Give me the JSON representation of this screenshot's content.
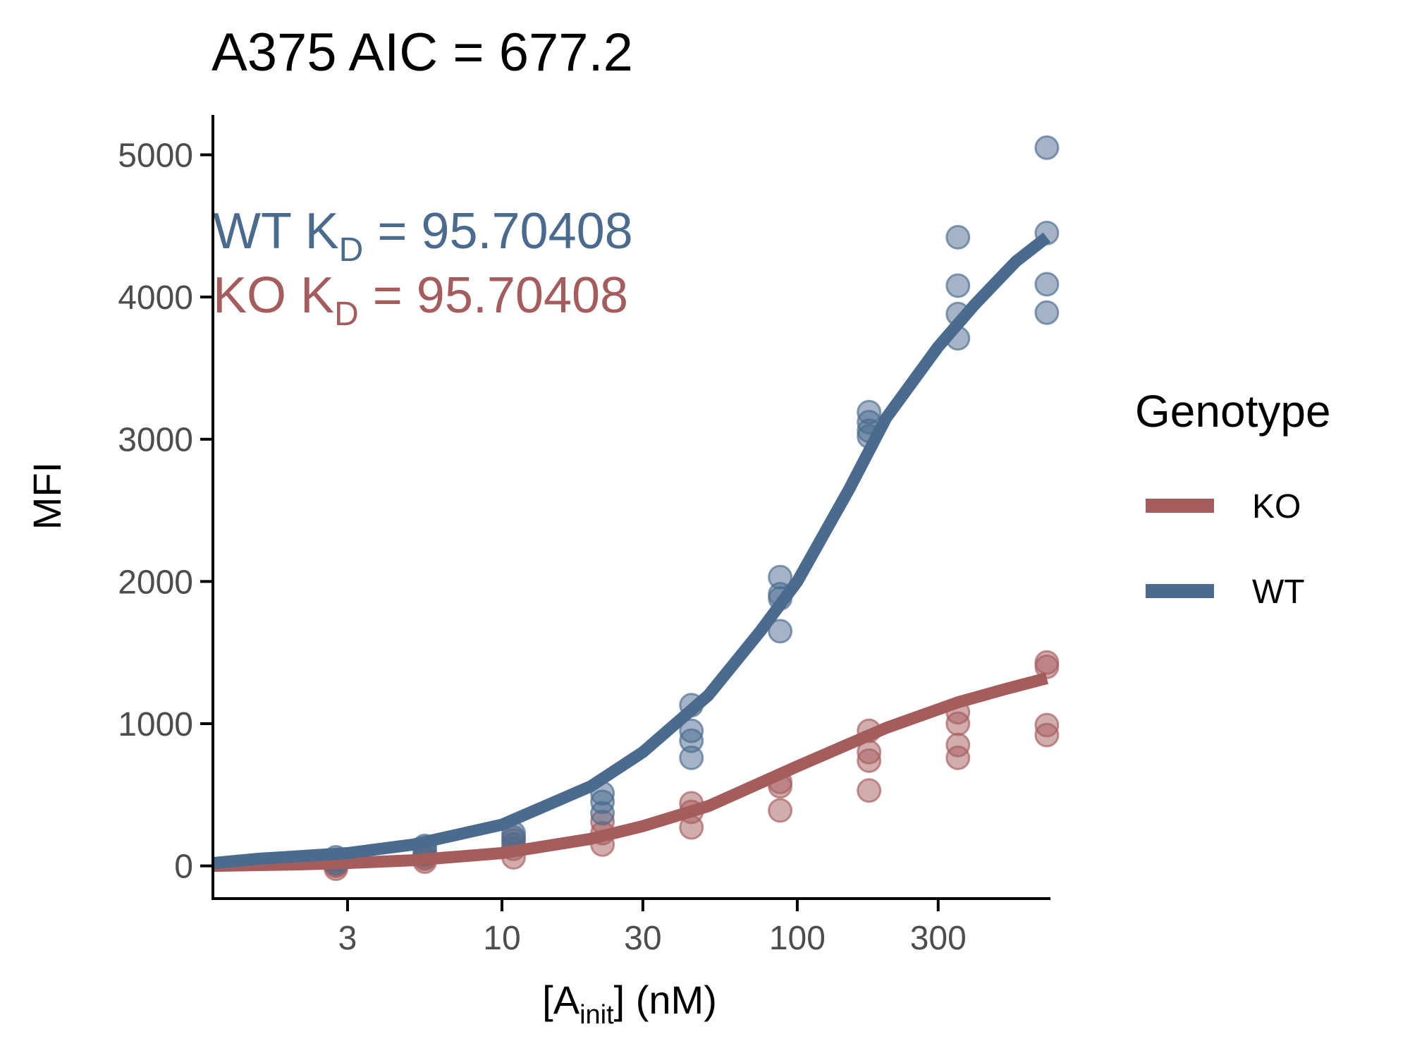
{
  "chart_data": {
    "type": "scatter",
    "title": "A375 AIC =  677.2",
    "xlabel": {
      "main": "[A",
      "sub": "init",
      "rest": "] (nM)"
    },
    "ylabel": "MFI",
    "x_scale": "log10",
    "xlim": [
      1.05,
      720
    ],
    "ylim": [
      -230,
      5280
    ],
    "x_ticks": [
      3,
      10,
      30,
      100,
      300
    ],
    "x_tick_labels": [
      "3",
      "10",
      "30",
      "100",
      "300"
    ],
    "y_ticks": [
      0,
      1000,
      2000,
      3000,
      4000,
      5000
    ],
    "y_tick_labels": [
      "0",
      "1000",
      "2000",
      "3000",
      "4000",
      "5000"
    ],
    "annotations": [
      {
        "series": "WT",
        "prefix": "WT  K",
        "sub": "D",
        "suffix": " = 95.70408",
        "color": "#4a6a8e"
      },
      {
        "series": "KO",
        "prefix": "KO  K",
        "sub": "D",
        "suffix": " = 95.70408",
        "color": "#a55c5c"
      }
    ],
    "legend": {
      "title": "Genotype",
      "position": "right",
      "entries": [
        {
          "name": "KO",
          "color": "#a55c5c"
        },
        {
          "name": "WT",
          "color": "#4a6a8e"
        }
      ]
    },
    "series": [
      {
        "name": "KO",
        "color": "#a55c5c",
        "points": [
          {
            "x": 2.74,
            "y": 0
          },
          {
            "x": 2.74,
            "y": 10
          },
          {
            "x": 2.74,
            "y": -20
          },
          {
            "x": 5.48,
            "y": 30
          },
          {
            "x": 5.48,
            "y": 60
          },
          {
            "x": 5.48,
            "y": 50
          },
          {
            "x": 10.95,
            "y": 60
          },
          {
            "x": 10.95,
            "y": 120
          },
          {
            "x": 10.95,
            "y": 180
          },
          {
            "x": 21.9,
            "y": 150
          },
          {
            "x": 21.9,
            "y": 230
          },
          {
            "x": 21.9,
            "y": 310
          },
          {
            "x": 43.8,
            "y": 270
          },
          {
            "x": 43.8,
            "y": 380
          },
          {
            "x": 43.8,
            "y": 440
          },
          {
            "x": 87.5,
            "y": 390
          },
          {
            "x": 87.5,
            "y": 560
          },
          {
            "x": 87.5,
            "y": 590
          },
          {
            "x": 175,
            "y": 530
          },
          {
            "x": 175,
            "y": 740
          },
          {
            "x": 175,
            "y": 800
          },
          {
            "x": 175,
            "y": 950
          },
          {
            "x": 350,
            "y": 760
          },
          {
            "x": 350,
            "y": 850
          },
          {
            "x": 350,
            "y": 1000
          },
          {
            "x": 350,
            "y": 1080
          },
          {
            "x": 700,
            "y": 920
          },
          {
            "x": 700,
            "y": 990
          },
          {
            "x": 700,
            "y": 1400
          },
          {
            "x": 700,
            "y": 1430
          }
        ],
        "fit": [
          {
            "x": 1.05,
            "y": 0
          },
          {
            "x": 2,
            "y": 10
          },
          {
            "x": 3,
            "y": 20
          },
          {
            "x": 5,
            "y": 40
          },
          {
            "x": 10,
            "y": 90
          },
          {
            "x": 20,
            "y": 190
          },
          {
            "x": 30,
            "y": 280
          },
          {
            "x": 50,
            "y": 420
          },
          {
            "x": 100,
            "y": 700
          },
          {
            "x": 200,
            "y": 970
          },
          {
            "x": 350,
            "y": 1150
          },
          {
            "x": 500,
            "y": 1240
          },
          {
            "x": 700,
            "y": 1320
          }
        ]
      },
      {
        "name": "WT",
        "color": "#4a6a8e",
        "points": [
          {
            "x": 2.74,
            "y": 40
          },
          {
            "x": 2.74,
            "y": 20
          },
          {
            "x": 2.74,
            "y": 60
          },
          {
            "x": 5.48,
            "y": 80
          },
          {
            "x": 5.48,
            "y": 110
          },
          {
            "x": 5.48,
            "y": 140
          },
          {
            "x": 10.95,
            "y": 150
          },
          {
            "x": 10.95,
            "y": 200
          },
          {
            "x": 10.95,
            "y": 230
          },
          {
            "x": 21.9,
            "y": 370
          },
          {
            "x": 21.9,
            "y": 450
          },
          {
            "x": 21.9,
            "y": 510
          },
          {
            "x": 43.8,
            "y": 760
          },
          {
            "x": 43.8,
            "y": 880
          },
          {
            "x": 43.8,
            "y": 950
          },
          {
            "x": 43.8,
            "y": 1130
          },
          {
            "x": 87.5,
            "y": 1650
          },
          {
            "x": 87.5,
            "y": 1880
          },
          {
            "x": 87.5,
            "y": 1910
          },
          {
            "x": 87.5,
            "y": 2030
          },
          {
            "x": 175,
            "y": 3020
          },
          {
            "x": 175,
            "y": 3060
          },
          {
            "x": 175,
            "y": 3120
          },
          {
            "x": 175,
            "y": 3190
          },
          {
            "x": 350,
            "y": 3710
          },
          {
            "x": 350,
            "y": 3880
          },
          {
            "x": 350,
            "y": 4080
          },
          {
            "x": 350,
            "y": 4420
          },
          {
            "x": 700,
            "y": 3890
          },
          {
            "x": 700,
            "y": 4090
          },
          {
            "x": 700,
            "y": 4450
          },
          {
            "x": 700,
            "y": 5050
          }
        ],
        "fit": [
          {
            "x": 1.05,
            "y": 20
          },
          {
            "x": 1.5,
            "y": 50
          },
          {
            "x": 3,
            "y": 90
          },
          {
            "x": 5,
            "y": 150
          },
          {
            "x": 10,
            "y": 290
          },
          {
            "x": 20,
            "y": 560
          },
          {
            "x": 30,
            "y": 800
          },
          {
            "x": 50,
            "y": 1200
          },
          {
            "x": 75,
            "y": 1650
          },
          {
            "x": 100,
            "y": 2000
          },
          {
            "x": 150,
            "y": 2650
          },
          {
            "x": 200,
            "y": 3150
          },
          {
            "x": 300,
            "y": 3650
          },
          {
            "x": 400,
            "y": 3950
          },
          {
            "x": 550,
            "y": 4250
          },
          {
            "x": 700,
            "y": 4420
          }
        ]
      }
    ]
  }
}
